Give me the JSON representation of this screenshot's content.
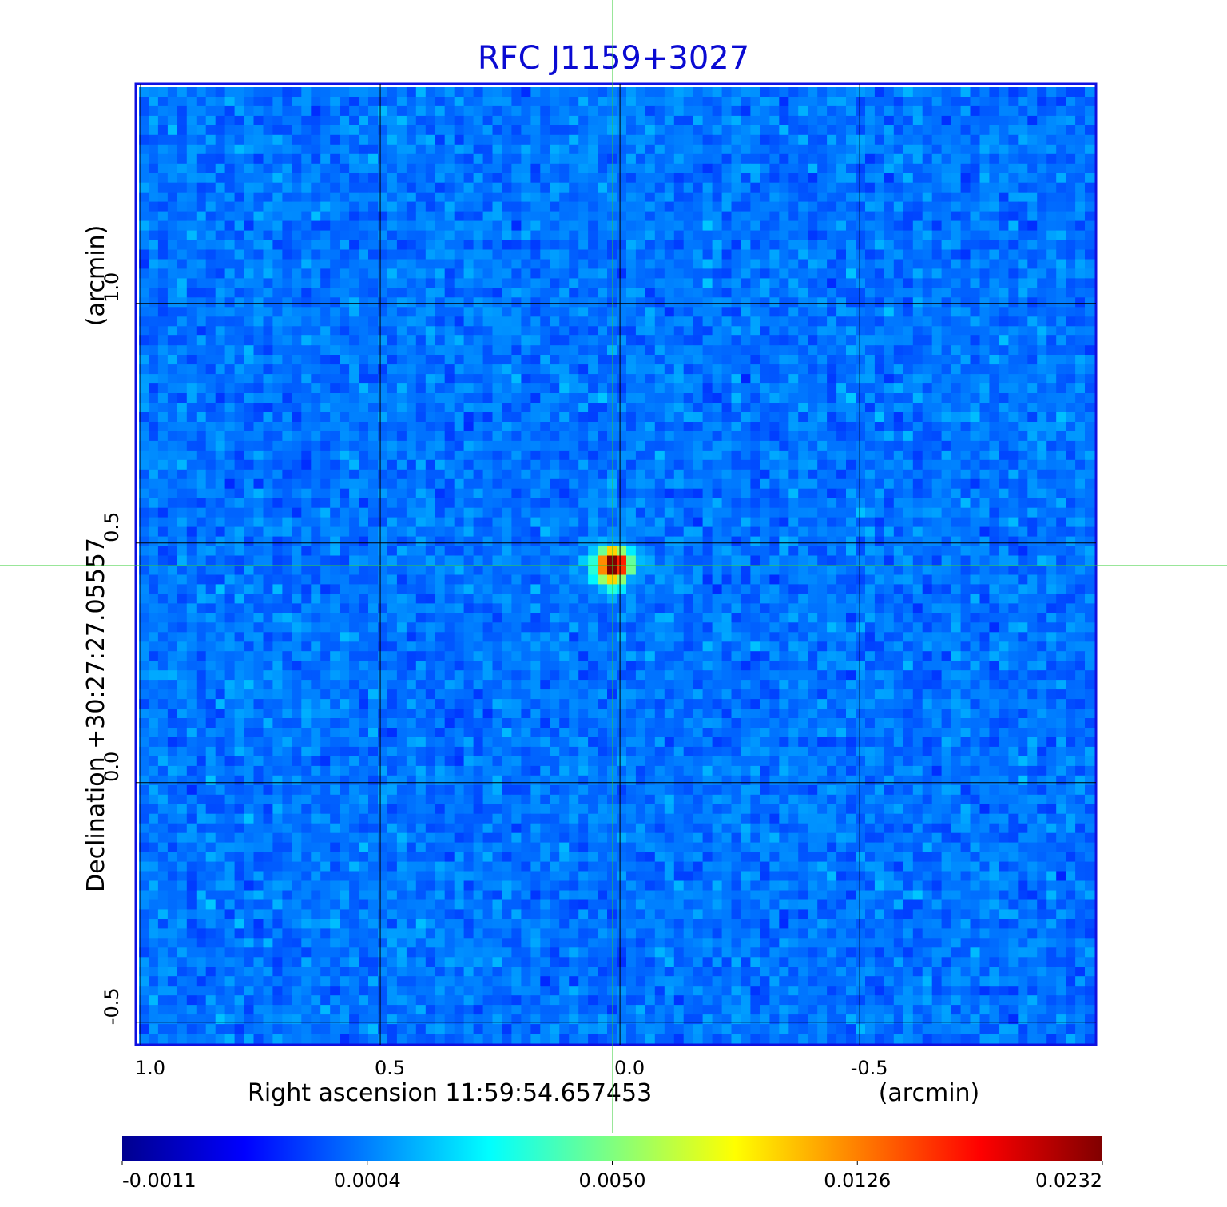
{
  "chart_data": {
    "type": "image",
    "title": "RFC J1159+3027",
    "xlabel": "Right ascension  11:59:54.657453",
    "xunit": "(arcmin)",
    "ylabel": "Declination  +30:27:27.05557",
    "yunit": "(arcmin)",
    "xlim": [
      1.01,
      -0.993
    ],
    "ylim": [
      -0.547,
      1.458
    ],
    "xticks": [
      {
        "value": 1,
        "label": "1.0"
      },
      0.5,
      {
        "value": 0,
        "label": "0.0"
      },
      -0.5
    ],
    "yticks": [
      {
        "value": -0.5,
        "label": "-0.5"
      },
      {
        "value": 0,
        "label": "0.0"
      },
      0.5,
      {
        "value": 1,
        "label": "1.0"
      }
    ],
    "grid": true,
    "colorbar": {
      "ticks": [
        -0.0011,
        0.0004,
        {
          "value": 0.005,
          "label": "0.0050"
        },
        0.0126,
        0.0232
      ],
      "colors": [
        "#00008f",
        "#0000ff",
        "#00ffff",
        "#ffff00",
        "#ff0000",
        "#800000"
      ]
    }
  }
}
